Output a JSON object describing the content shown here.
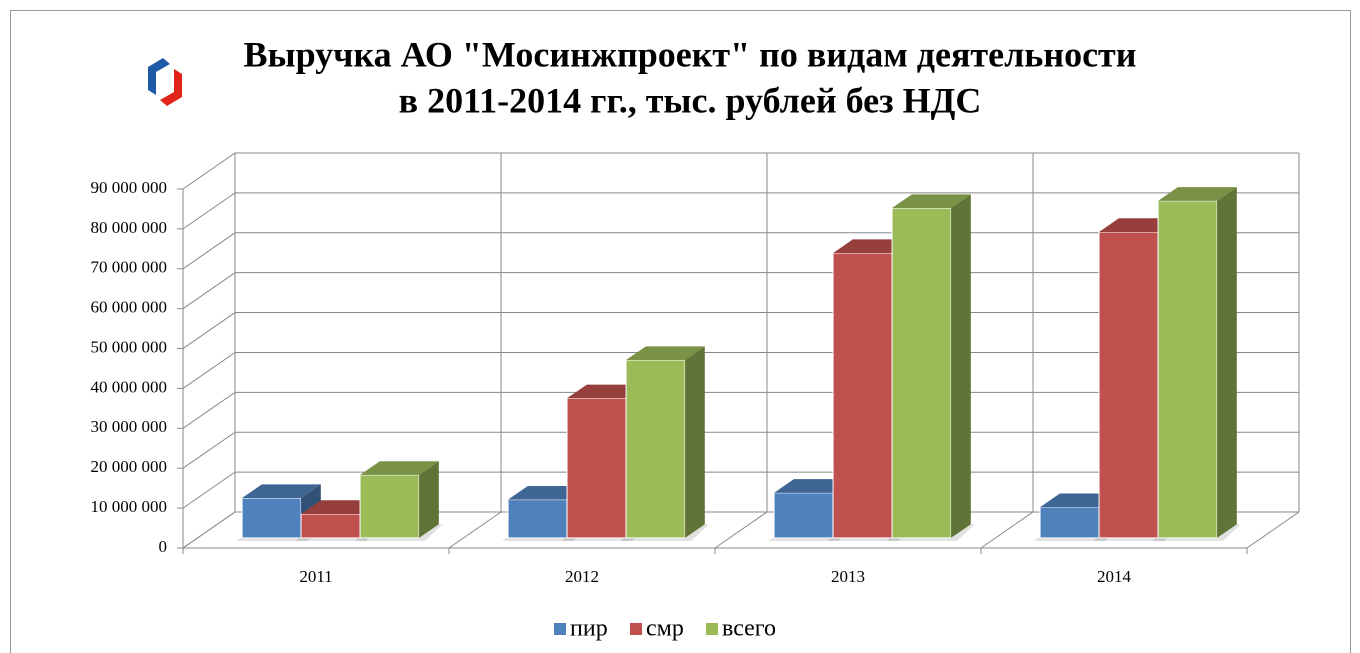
{
  "chart_data": {
    "type": "bar3d",
    "title": [
      "Выручка АО \"Мосинжпроект\" по видам деятельности",
      "в 2011-2014 гг., тыс. рублей без НДС"
    ],
    "categories": [
      "2011",
      "2012",
      "2013",
      "2014"
    ],
    "series": [
      {
        "name": "пир",
        "color": "#4f81bd",
        "values": [
          10000000,
          9600000,
          11300000,
          7700000
        ]
      },
      {
        "name": "смр",
        "color": "#c0504d",
        "values": [
          6000000,
          35000000,
          71400000,
          76700000
        ]
      },
      {
        "name": "всего",
        "color": "#9bbb59",
        "values": [
          15800000,
          44600000,
          82700000,
          84500000
        ]
      }
    ],
    "ylim": [
      0,
      90000000
    ],
    "yticks": [
      0,
      {
        "value": 10000000,
        "label": "10 000 000"
      },
      {
        "value": 20000000,
        "label": "20 000 000"
      },
      {
        "value": 30000000,
        "label": "30 000 000"
      },
      {
        "value": 40000000,
        "label": "40 000 000"
      },
      {
        "value": 50000000,
        "label": "50 000 000"
      },
      {
        "value": 60000000,
        "label": "60 000 000"
      },
      {
        "value": 70000000,
        "label": "70 000 000"
      },
      {
        "value": 80000000,
        "label": "80 000 000"
      },
      {
        "value": 90000000,
        "label": "90 000 000"
      }
    ],
    "grid": true,
    "legend": "bottom"
  }
}
